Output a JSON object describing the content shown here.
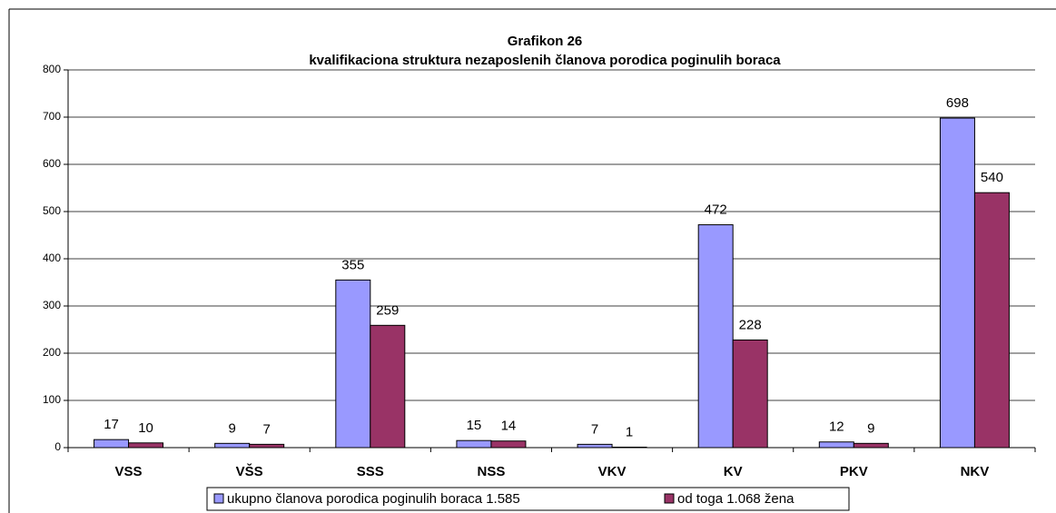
{
  "chart_data": {
    "type": "bar",
    "title": "Grafikon 26",
    "subtitle": "kvalifikaciona struktura nezaposlenih članova porodica poginulih boraca",
    "categories": [
      "VSS",
      "VŠS",
      "SSS",
      "NSS",
      "VKV",
      "KV",
      "PKV",
      "NKV"
    ],
    "series": [
      {
        "name": "ukupno članova porodica poginulih boraca 1.585",
        "color": "#9999ff",
        "values": [
          17,
          9,
          355,
          15,
          7,
          472,
          12,
          698
        ]
      },
      {
        "name": "od toga 1.068 žena",
        "color": "#993366",
        "values": [
          10,
          7,
          259,
          14,
          1,
          228,
          9,
          540
        ]
      }
    ],
    "ylim": [
      0,
      800
    ],
    "yticks": [
      0,
      100,
      200,
      300,
      400,
      500,
      600,
      700,
      800
    ],
    "grid": true,
    "legend": "bottom"
  }
}
